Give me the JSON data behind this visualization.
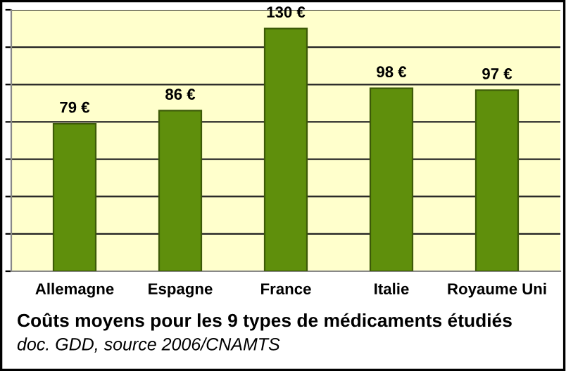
{
  "chart_data": {
    "type": "bar",
    "categories": [
      "Allemagne",
      "Espagne",
      "France",
      "Italie",
      "Royaume Uni"
    ],
    "values": [
      79,
      86,
      130,
      98,
      97
    ],
    "value_labels": [
      "79 €",
      "86 €",
      "130 €",
      "98 €",
      "97 €"
    ],
    "color": "#5f8f0c",
    "ylim": [
      0,
      140
    ],
    "yticks": [
      {
        "value": 0,
        "label": null
      },
      {
        "value": 20,
        "label": null
      },
      {
        "value": 40,
        "label": null
      },
      {
        "value": 60,
        "label": null
      },
      {
        "value": 80,
        "label": null
      },
      {
        "value": 100,
        "label": null
      },
      {
        "value": 120,
        "label": null
      },
      {
        "value": 140,
        "label": null
      }
    ],
    "grid": "y",
    "annotations": [
      "Coûts moyens pour les 9 types de médicaments étudiés",
      "doc. GDD, source 2006/CNAMTS"
    ]
  }
}
